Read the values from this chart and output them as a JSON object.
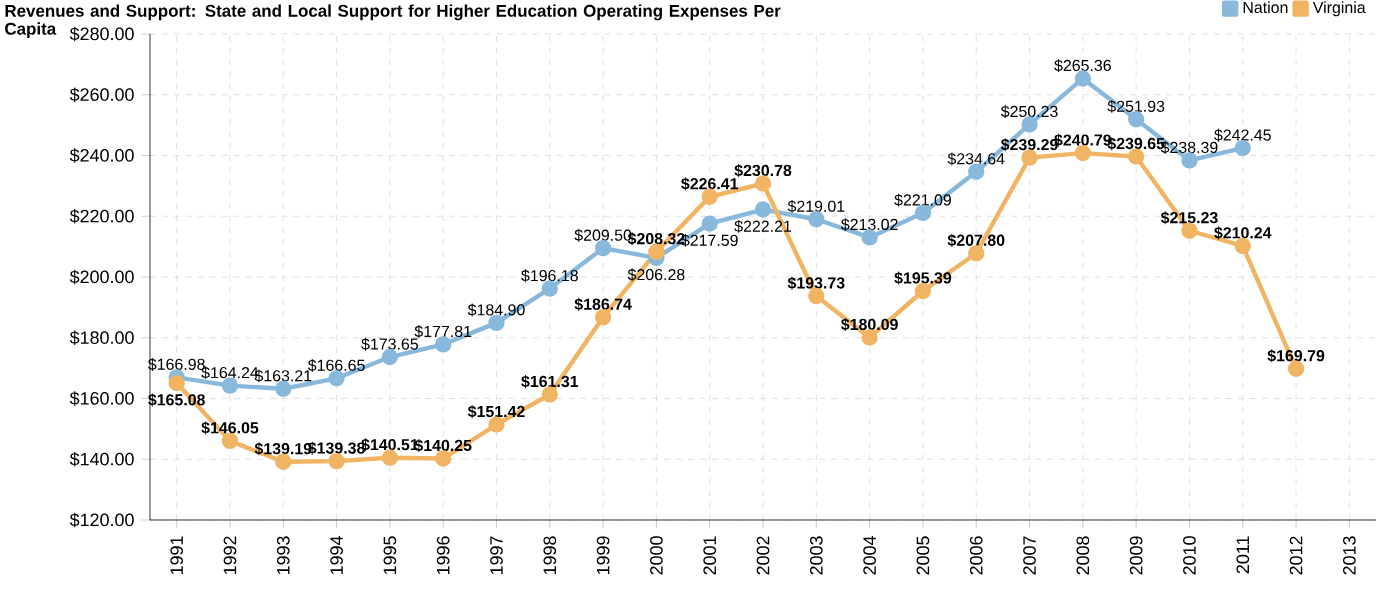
{
  "chart_data": {
    "type": "line",
    "title": "Revenues and Support: State and Local Support for Higher Education Operating Expenses Per Capita",
    "categories": [
      "1991",
      "1992",
      "1993",
      "1994",
      "1995",
      "1996",
      "1997",
      "1998",
      "1999",
      "2000",
      "2001",
      "2002",
      "2003",
      "2004",
      "2005",
      "2006",
      "2007",
      "2008",
      "2009",
      "2010",
      "2011",
      "2012",
      "2013"
    ],
    "series": [
      {
        "name": "Nation",
        "color": "#88b9dd",
        "values": [
          166.98,
          164.24,
          163.21,
          166.65,
          173.65,
          177.81,
          184.9,
          196.18,
          209.5,
          206.28,
          217.59,
          222.21,
          219.01,
          213.02,
          221.09,
          234.64,
          250.23,
          265.36,
          251.93,
          238.39,
          242.45,
          null,
          null
        ],
        "value_labels": [
          "$166.98",
          "$164.24",
          "$163.21",
          "$166.65",
          "$173.65",
          "$177.81",
          "$184.90",
          "$196.18",
          "$209.50",
          "$206.28",
          "$217.59",
          "$222.21",
          "$219.01",
          "$213.02",
          "$221.09",
          "$234.64",
          "$250.23",
          "$265.36",
          "$251.93",
          "$238.39",
          "$242.45",
          null,
          null
        ]
      },
      {
        "name": "Virginia",
        "color": "#f0b462",
        "values": [
          165.08,
          146.05,
          139.19,
          139.38,
          140.51,
          140.25,
          151.42,
          161.31,
          186.74,
          208.32,
          226.41,
          230.78,
          193.73,
          180.09,
          195.39,
          207.8,
          239.29,
          240.79,
          239.65,
          215.23,
          210.24,
          169.79,
          null
        ],
        "value_labels": [
          "$165.08",
          "$146.05",
          "$139.19",
          "$139.38",
          "$140.51",
          "$140.25",
          "$151.42",
          "$161.31",
          "$186.74",
          "$208.32",
          "$226.41",
          "$230.78",
          "$193.73",
          "$180.09",
          "$195.39",
          "$207.80",
          "$239.29",
          "$240.79",
          "$239.65",
          "$215.23",
          "$210.24",
          "$169.79",
          null
        ]
      }
    ],
    "ylim": [
      120,
      280
    ],
    "yticks": [
      {
        "value": 120,
        "label": "$120.00"
      },
      {
        "value": 140,
        "label": "$140.00"
      },
      {
        "value": 160,
        "label": "$160.00"
      },
      {
        "value": 180,
        "label": "$180.00"
      },
      {
        "value": 200,
        "label": "$200.00"
      },
      {
        "value": 220,
        "label": "$220.00"
      },
      {
        "value": 240,
        "label": "$240.00"
      },
      {
        "value": 260,
        "label": "$260.00"
      },
      {
        "value": 280,
        "label": "$280.00"
      }
    ],
    "grid": true,
    "legend": "top right",
    "marker": "circle",
    "line_style": "solid"
  }
}
